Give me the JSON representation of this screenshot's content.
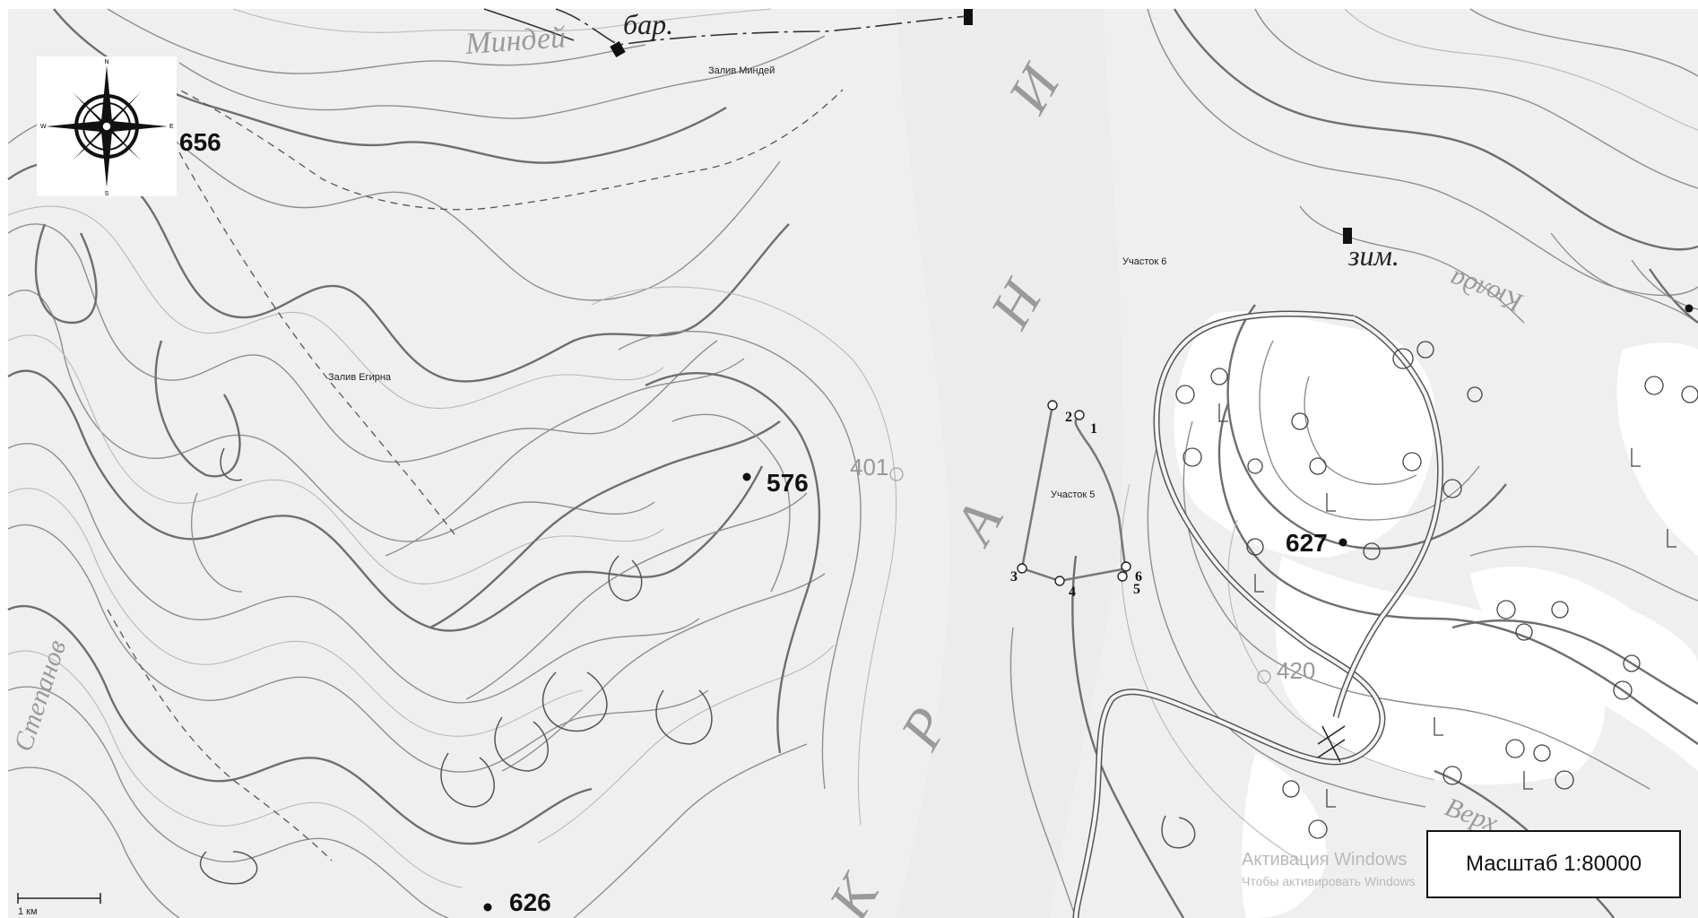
{
  "map": {
    "compass_icon": "compass-rose-icon",
    "compass_letters": {
      "n": "N",
      "s": "S",
      "e": "E",
      "w": "W"
    },
    "scale_label": "Масштаб 1:80000",
    "scalebar_label": "1 км",
    "watermark": {
      "line1": "Активация Windows",
      "line2": "Чтобы активировать Windows"
    },
    "place_labels": {
      "mindey": "Миндей",
      "bar": "бар.",
      "zaliv_mindey": "Залив Миндей",
      "zaliv_egirna": "Залив Егирна",
      "stepanov": "Степанов",
      "zim": "зим.",
      "upper_right": "Кюлда",
      "bottom_right": "Верх",
      "river_big": [
        "К",
        "Р",
        "А",
        "Н",
        "И"
      ]
    },
    "elevations": {
      "e656": "656",
      "e576": "576",
      "e626": "626",
      "e627": "627",
      "e401": "401",
      "e420": "420"
    },
    "plots": {
      "uchastok6": "Участок 6",
      "uchastok5": "Участок 5"
    },
    "plot_points": [
      "1",
      "2",
      "3",
      "4",
      "5",
      "6"
    ]
  }
}
